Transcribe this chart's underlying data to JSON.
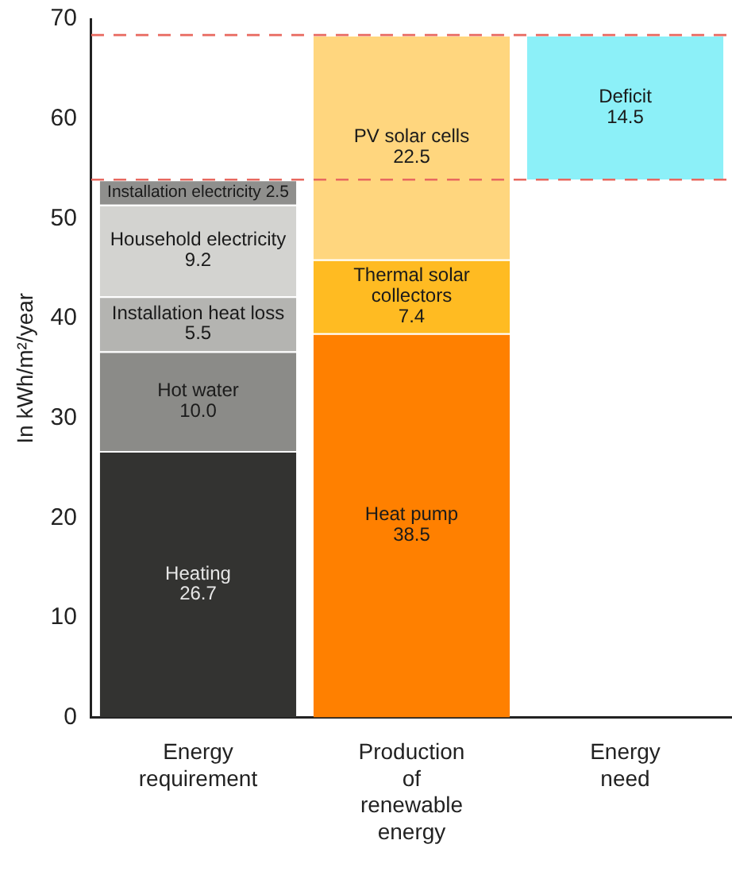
{
  "chart_data": {
    "type": "bar",
    "stacked": true,
    "ylabel": "In kWh/m²/year",
    "categories": [
      "Energy requirement",
      "Production of renewable energy",
      "Energy need"
    ],
    "series": [
      {
        "name": "Heating",
        "color": "#333331",
        "values": [
          26.7,
          null,
          null
        ]
      },
      {
        "name": "Hot water",
        "color": "#8b8b88",
        "values": [
          10.0,
          null,
          null
        ],
        "value_labels": [
          "10.0",
          null,
          null
        ]
      },
      {
        "name": "Installation heat loss",
        "color": "#b4b4b1",
        "values": [
          5.5,
          null,
          null
        ]
      },
      {
        "name": "Household electricity",
        "color": "#d3d3d0",
        "values": [
          9.2,
          null,
          null
        ]
      },
      {
        "name": "Installation electricity",
        "color": "#8f8f8d",
        "values": [
          2.5,
          null,
          null
        ]
      },
      {
        "name": "Heat pump",
        "color": "#ff8000",
        "values": [
          null,
          38.5,
          null
        ]
      },
      {
        "name": "Thermal solar collectors",
        "color": "#ffbb22",
        "values": [
          null,
          7.4,
          null
        ]
      },
      {
        "name": "PV solar cells",
        "color": "#ffd67e",
        "values": [
          null,
          22.5,
          null
        ]
      },
      {
        "name": "Deficit",
        "color": "#8cf0f8",
        "values": [
          null,
          null,
          14.5
        ],
        "base": [
          null,
          null,
          53.9
        ]
      }
    ],
    "data_labels": true,
    "ylim": [
      0,
      70
    ],
    "yticks": [
      0,
      10,
      20,
      30,
      40,
      50,
      60,
      70
    ],
    "grid": false,
    "legend": false,
    "ref_lines": [
      {
        "axis": "y",
        "value": 53.9,
        "color": "#e8685f",
        "line_style": "dashed"
      },
      {
        "axis": "y",
        "value": 68.4,
        "color": "#e8685f",
        "line_style": "dashed"
      }
    ]
  }
}
